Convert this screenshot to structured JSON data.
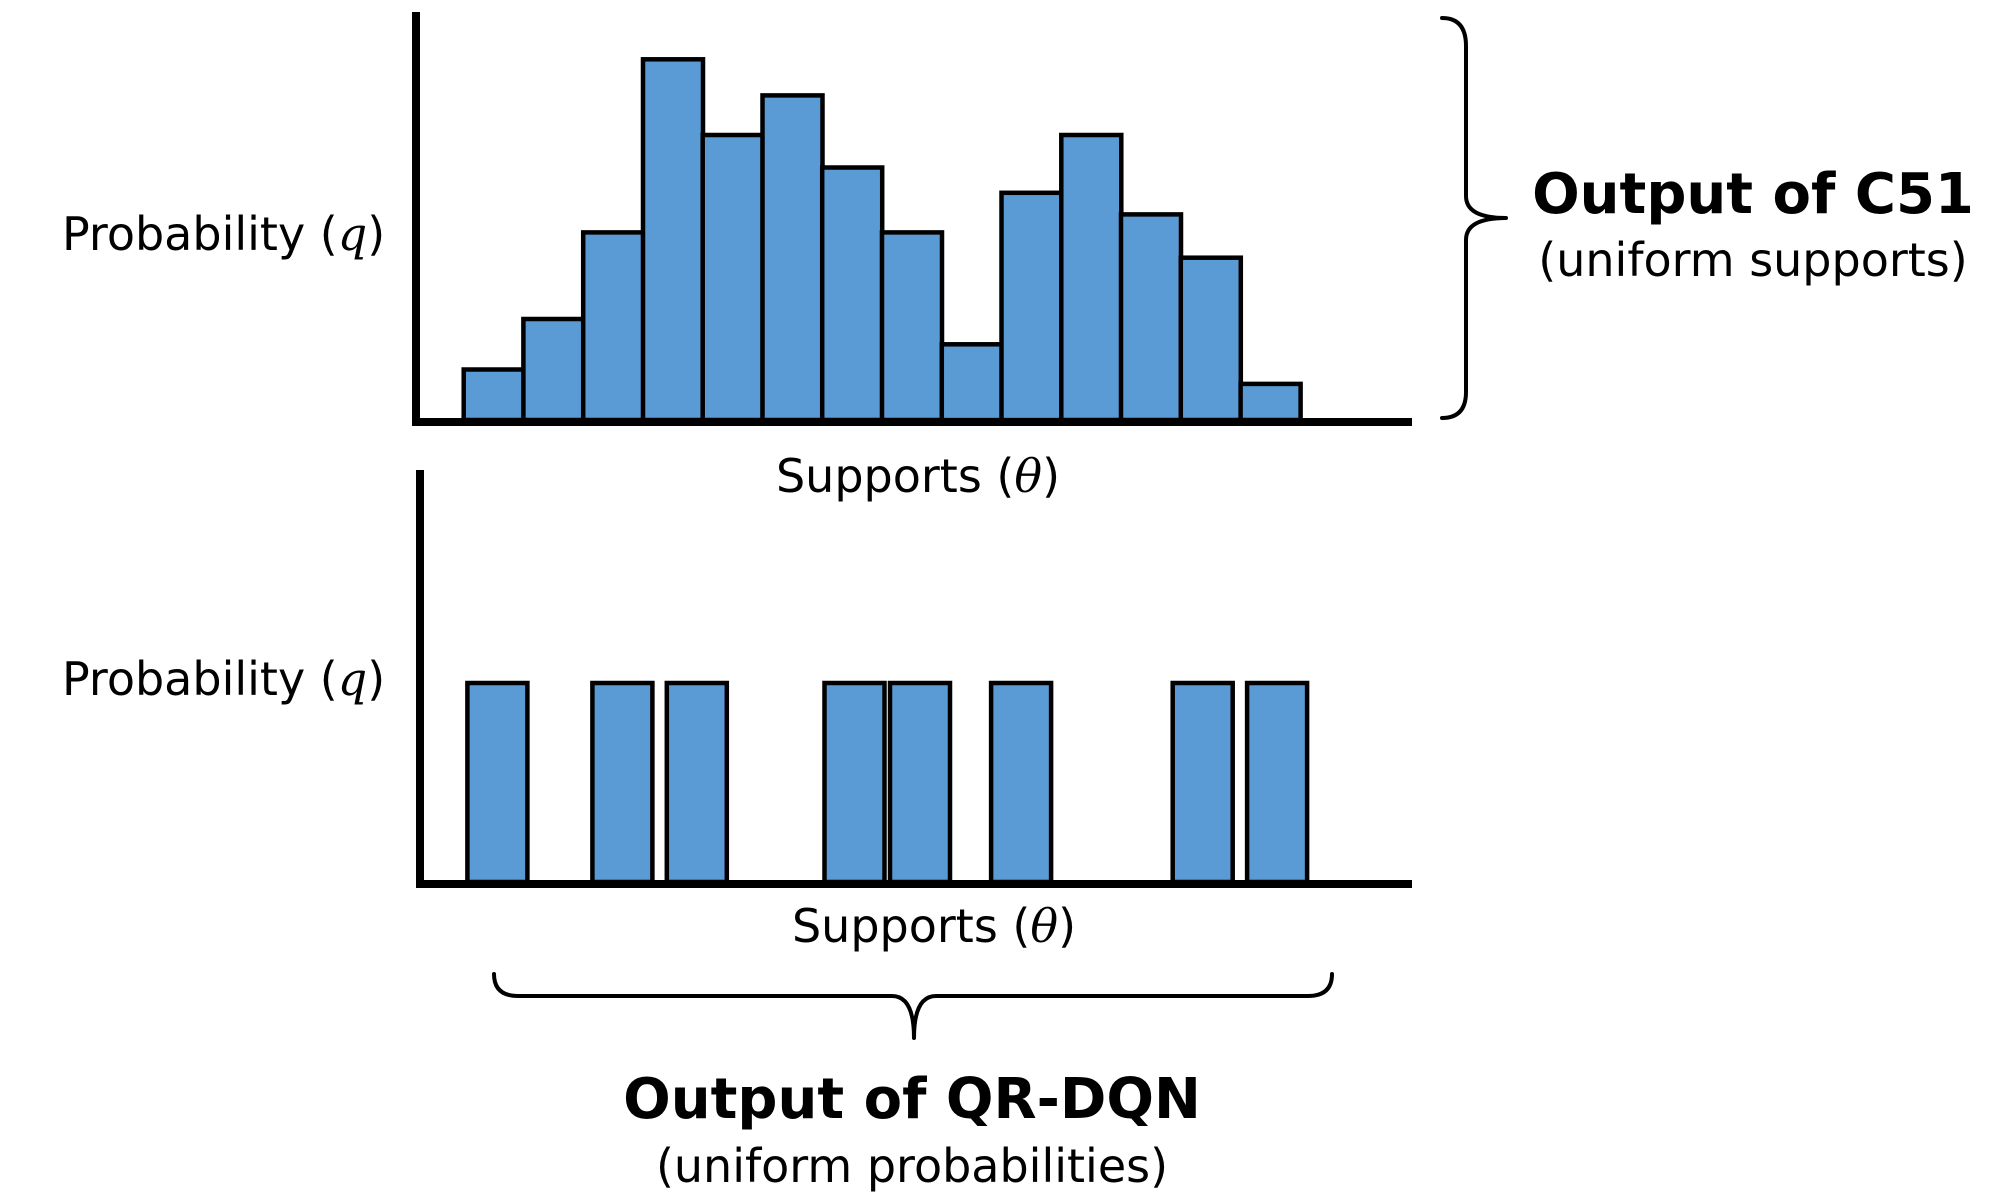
{
  "diagram": {
    "top_panel": {
      "ylabel_text": "Probability (",
      "ylabel_symbol": "q",
      "ylabel_close": ")",
      "xlabel_text": "Supports (",
      "xlabel_symbol": "θ",
      "xlabel_close": ")",
      "group_title": "Output of C51",
      "group_subtitle": "(uniform supports)"
    },
    "bottom_panel": {
      "ylabel_text": "Probability (",
      "ylabel_symbol": "q",
      "ylabel_close": ")",
      "xlabel_text": "Supports (",
      "xlabel_symbol": "θ",
      "xlabel_close": ")",
      "group_title": "Output of QR-DQN",
      "group_subtitle": "(uniform probabilities)"
    },
    "colors": {
      "bar_fill": "#5b9bd5",
      "stroke": "#000000"
    }
  },
  "chart_data": [
    {
      "type": "bar",
      "description_role": "C51 categorical distribution over evenly spaced supports",
      "xlabel": "Supports (θ)",
      "ylabel": "Probability (q)",
      "support_positions": [
        0,
        1,
        2,
        3,
        4,
        5,
        6,
        7,
        8,
        9,
        10,
        11,
        12,
        13
      ],
      "values": [
        0.14,
        0.28,
        0.52,
        1.0,
        0.79,
        0.9,
        0.7,
        0.52,
        0.21,
        0.63,
        0.79,
        0.57,
        0.45,
        0.1
      ],
      "ylim": [
        0,
        1.12
      ],
      "xlim": [
        -1.3,
        15.3
      ],
      "grid": false
    },
    {
      "type": "bar",
      "description_role": "QR-DQN quantile distribution with equal probabilities at learned supports",
      "xlabel": "Supports (θ)",
      "ylabel": "Probability (q)",
      "support_positions": [
        0,
        2.1,
        3.35,
        6.0,
        7.1,
        8.8,
        11.85,
        13.1
      ],
      "values": [
        1,
        1,
        1,
        1,
        1,
        1,
        1,
        1
      ],
      "ylim": [
        0,
        2.05
      ],
      "xlim": [
        -1.3,
        15.3
      ],
      "grid": false
    }
  ]
}
